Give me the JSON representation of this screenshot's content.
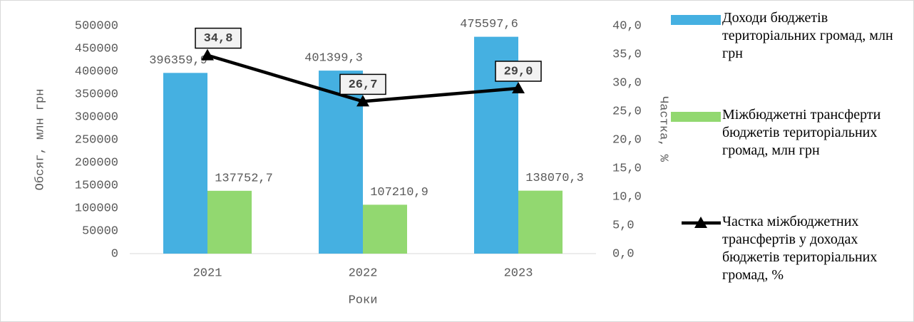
{
  "chart_data": {
    "type": "bar",
    "categories": [
      "2021",
      "2022",
      "2023"
    ],
    "x_label": "Роки",
    "y_label": "Обсяг, млн грн",
    "y2_label": "Частка, %",
    "ylim": [
      0,
      500000
    ],
    "yticks": [
      0,
      50000,
      100000,
      150000,
      200000,
      250000,
      300000,
      350000,
      400000,
      450000,
      500000
    ],
    "y2lim": [
      0,
      40
    ],
    "y2ticks": [
      {
        "value": 0,
        "label": "0,0"
      },
      {
        "value": 5,
        "label": "5,0"
      },
      {
        "value": 10,
        "label": "10,0"
      },
      {
        "value": 15,
        "label": "15,0"
      },
      {
        "value": 20,
        "label": "20,0"
      },
      {
        "value": 25,
        "label": "25,0"
      },
      {
        "value": 30,
        "label": "30,0"
      },
      {
        "value": 35,
        "label": "35,0"
      },
      {
        "value": 40,
        "label": "40,0"
      }
    ],
    "grid": false,
    "legend": "right",
    "series": [
      {
        "name": "Доходи бюджетів територіальних громад, млн грн",
        "type": "bar",
        "color": "#45b0e1",
        "values": [
          396359.9,
          401399.3,
          475597.6
        ],
        "value_labels": [
          "396359,9",
          "401399,3",
          "475597,6"
        ]
      },
      {
        "name": "Міжбюджетні трансферти бюджетів територіальних громад, млн грн",
        "type": "bar",
        "color": "#92d870",
        "values": [
          137752.7,
          107210.9,
          138070.3
        ],
        "value_labels": [
          "137752,7",
          "107210,9",
          "138070,3"
        ]
      },
      {
        "name": "Частка міжбюджетних трансфертів у доходах бюджетів територіальних громад, %",
        "type": "line",
        "color": "#000000",
        "axis": "y2",
        "values": [
          34.8,
          26.7,
          29.0
        ],
        "value_labels": [
          "34,8",
          "26,7",
          "29,0"
        ]
      }
    ]
  }
}
